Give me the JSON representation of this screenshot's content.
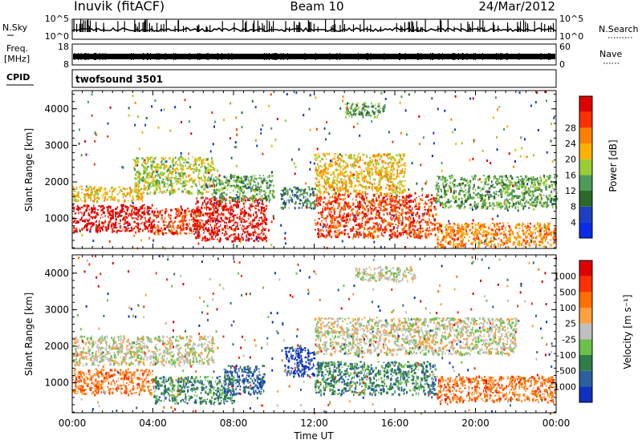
{
  "header": {
    "station": "Inuvik (fitACF)",
    "beam": "Beam 10",
    "date": "24/Mar/2012"
  },
  "noise_panel": {
    "left_label": "N.Sky",
    "left_ticks": [
      "10^5",
      "10^0"
    ],
    "right_label": "N.Search",
    "right_ticks": [
      "10^5",
      "10^0"
    ]
  },
  "freq_panel": {
    "left_label_1": "Freq.",
    "left_label_2": "[MHz]",
    "left_ticks": [
      "18",
      "8"
    ],
    "right_label": "Nave",
    "right_ticks": [
      "60",
      "0"
    ]
  },
  "cpid": {
    "label": "CPID",
    "value": "twofsound 3501"
  },
  "colors": {
    "power": [
      "#0a2be8",
      "#1e3fbf",
      "#2b6a2b",
      "#4e9a5a",
      "#9acd32",
      "#ffb000",
      "#ff8000",
      "#ff3000",
      "#e00000"
    ],
    "velocity": [
      "#1030c0",
      "#2b5fa0",
      "#2e7d4a",
      "#6cc04a",
      "#bfbfbf",
      "#ffa040",
      "#ff7000",
      "#ff3000",
      "#e00000"
    ]
  },
  "chart_data": [
    {
      "type": "heatmap",
      "name": "power",
      "ylabel": "Slant Range [km]",
      "ylim": [
        180,
        4500
      ],
      "y_ticks": [
        "1000",
        "2000",
        "3000",
        "4000"
      ],
      "xlim": [
        0,
        24
      ],
      "colorbar_label": "Power [dB]",
      "colorbar_ticks": [
        "4",
        "8",
        "12",
        "16",
        "20",
        "24",
        "28"
      ],
      "regions": [
        {
          "t0": 0.0,
          "t1": 4.0,
          "r0": 650,
          "r1": 1400,
          "level": 8
        },
        {
          "t0": 4.0,
          "t1": 6.3,
          "r0": 600,
          "r1": 1300,
          "level": 7
        },
        {
          "t0": 6.0,
          "t1": 9.6,
          "r0": 400,
          "r1": 1600,
          "level": 8
        },
        {
          "t0": 0.0,
          "t1": 3.5,
          "r0": 1500,
          "r1": 1900,
          "level": 5
        },
        {
          "t0": 3.0,
          "t1": 7.0,
          "r0": 1700,
          "r1": 2700,
          "level": 4
        },
        {
          "t0": 7.0,
          "t1": 10.0,
          "r0": 1500,
          "r1": 2200,
          "level": 3
        },
        {
          "t0": 12.0,
          "t1": 16.5,
          "r0": 1700,
          "r1": 2800,
          "level": 5
        },
        {
          "t0": 12.0,
          "t1": 18.0,
          "r0": 500,
          "r1": 1700,
          "level": 7
        },
        {
          "t0": 18.0,
          "t1": 24.0,
          "r0": 250,
          "r1": 900,
          "level": 6
        },
        {
          "t0": 18.0,
          "t1": 24.0,
          "r0": 1300,
          "r1": 2200,
          "level": 3
        },
        {
          "t0": 10.3,
          "t1": 12.0,
          "r0": 1300,
          "r1": 1900,
          "level": 2
        },
        {
          "t0": 13.5,
          "t1": 15.5,
          "r0": 3800,
          "r1": 4200,
          "level": 3
        }
      ]
    },
    {
      "type": "heatmap",
      "name": "velocity",
      "ylabel": "Slant Range [km]",
      "ylim": [
        180,
        4500
      ],
      "y_ticks": [
        "1000",
        "2000",
        "3000",
        "4000"
      ],
      "xlim": [
        0,
        24
      ],
      "xlabel": "Time UT",
      "x_ticks": [
        "00:00",
        "04:00",
        "08:00",
        "12:00",
        "16:00",
        "20:00",
        "00:00"
      ],
      "colorbar_label": "Velocity [m s⁻¹]",
      "colorbar_ticks": [
        "-1000",
        "-500",
        "-100",
        "-25",
        "25",
        "100",
        "500",
        "1000"
      ],
      "regions": [
        {
          "t0": 0.0,
          "t1": 4.0,
          "r0": 700,
          "r1": 1400,
          "level": 6
        },
        {
          "t0": 4.0,
          "t1": 8.0,
          "r0": 450,
          "r1": 1200,
          "level": 2
        },
        {
          "t0": 7.5,
          "t1": 9.5,
          "r0": 700,
          "r1": 1500,
          "level": 1
        },
        {
          "t0": 0.0,
          "t1": 7.0,
          "r0": 1500,
          "r1": 2300,
          "level": 4
        },
        {
          "t0": 12.0,
          "t1": 18.0,
          "r0": 700,
          "r1": 1600,
          "level": 2
        },
        {
          "t0": 10.5,
          "t1": 12.0,
          "r0": 1200,
          "r1": 2000,
          "level": 0
        },
        {
          "t0": 12.0,
          "t1": 22.0,
          "r0": 1800,
          "r1": 2800,
          "level": 4
        },
        {
          "t0": 18.0,
          "t1": 24.0,
          "r0": 500,
          "r1": 1200,
          "level": 6
        },
        {
          "t0": 14.0,
          "t1": 17.0,
          "r0": 3800,
          "r1": 4200,
          "level": 4
        }
      ]
    }
  ]
}
